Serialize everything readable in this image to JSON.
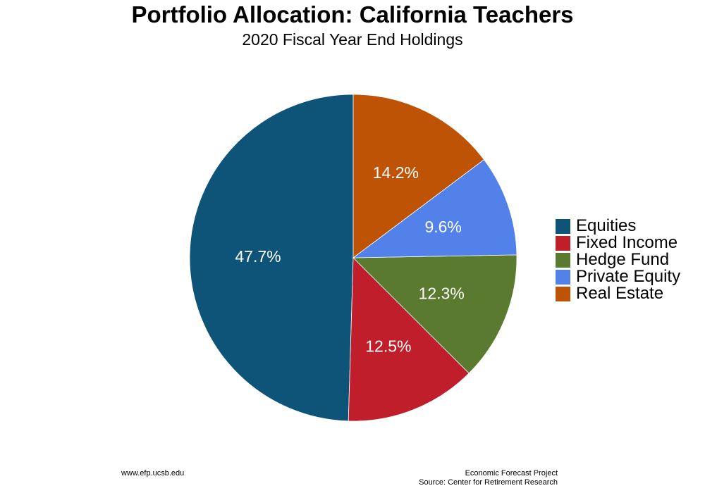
{
  "chart_data": {
    "type": "pie",
    "title": "Portfolio Allocation: California Teachers",
    "subtitle": "2020 Fiscal Year End Holdings",
    "categories": [
      "Equities",
      "Fixed Income",
      "Hedge Fund",
      "Private Equity",
      "Real Estate"
    ],
    "values": [
      47.7,
      12.5,
      12.3,
      9.6,
      14.2
    ],
    "data_labels": [
      "47.7%",
      "12.5%",
      "12.3%",
      "9.6%",
      "14.2%"
    ],
    "colors": [
      "#0d5478",
      "#bf1e2a",
      "#5a7a2f",
      "#5282e9",
      "#bf5305"
    ],
    "label_color": "#ffffff",
    "start_angle_deg": 0,
    "direction": "counterclockwise",
    "legend_position": "right"
  },
  "footer": {
    "left": "www.efp.ucsb.edu",
    "right_line1": "Economic Forecast Project",
    "right_line2": "Source: Center for Retirement Research"
  }
}
